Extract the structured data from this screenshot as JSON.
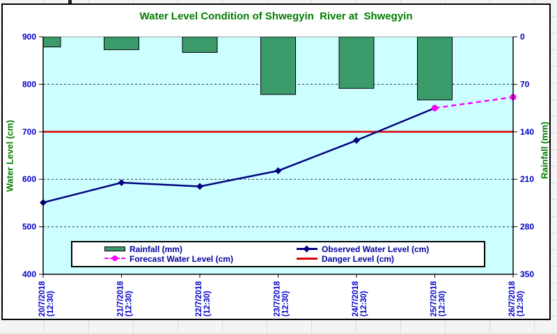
{
  "colors": {
    "title-green": "#007C00",
    "tick-blue": "#0000C8",
    "legend-navy": "#0000A0",
    "bar-green": "#3B9B6B",
    "plot-cyan": "#CCFFFF",
    "observed-navy": "#000080",
    "forecast-magenta": "#FF00FF",
    "danger-red": "#DD0000"
  },
  "chart_data": {
    "type": "bar",
    "title": "Water Level Condition of Shwegyin  River at  Shwegyin",
    "categories": [
      "20/7/2018",
      "21/7/2018",
      "22/7/2018",
      "23/7/2018",
      "24/7/2018",
      "25/7/2018",
      "26/7/2018"
    ],
    "category_time": "(12:30)",
    "left_axis": {
      "label": "Water Level (cm)",
      "min": 400,
      "max": 900,
      "step": 100
    },
    "right_axis": {
      "label": "Rainfall (mm)",
      "min": 0,
      "max": 350,
      "step": 70,
      "inverted": true,
      "bars_hang_from_top": true
    },
    "grid": "dashed horizontal",
    "legend_position": "bottom inside box",
    "series": [
      {
        "name": "Rainfall (mm)",
        "type": "bar",
        "axis": "right",
        "color": "#3B9B6B",
        "values": [
          15,
          19,
          23,
          85,
          76,
          93,
          null
        ]
      },
      {
        "name": "Observed Water Level (cm)",
        "type": "line",
        "axis": "left",
        "color": "#000080",
        "marker": "diamond",
        "values": [
          551,
          593,
          585,
          618,
          682,
          750,
          null
        ]
      },
      {
        "name": "Forecast Water Level (cm)",
        "type": "line-dashed",
        "axis": "left",
        "color": "#FF00FF",
        "marker": "circle",
        "values": [
          null,
          null,
          null,
          null,
          null,
          750,
          773
        ]
      },
      {
        "name": "Danger Level (cm)",
        "type": "hline",
        "axis": "left",
        "color": "#DD0000",
        "value": 700
      }
    ]
  }
}
